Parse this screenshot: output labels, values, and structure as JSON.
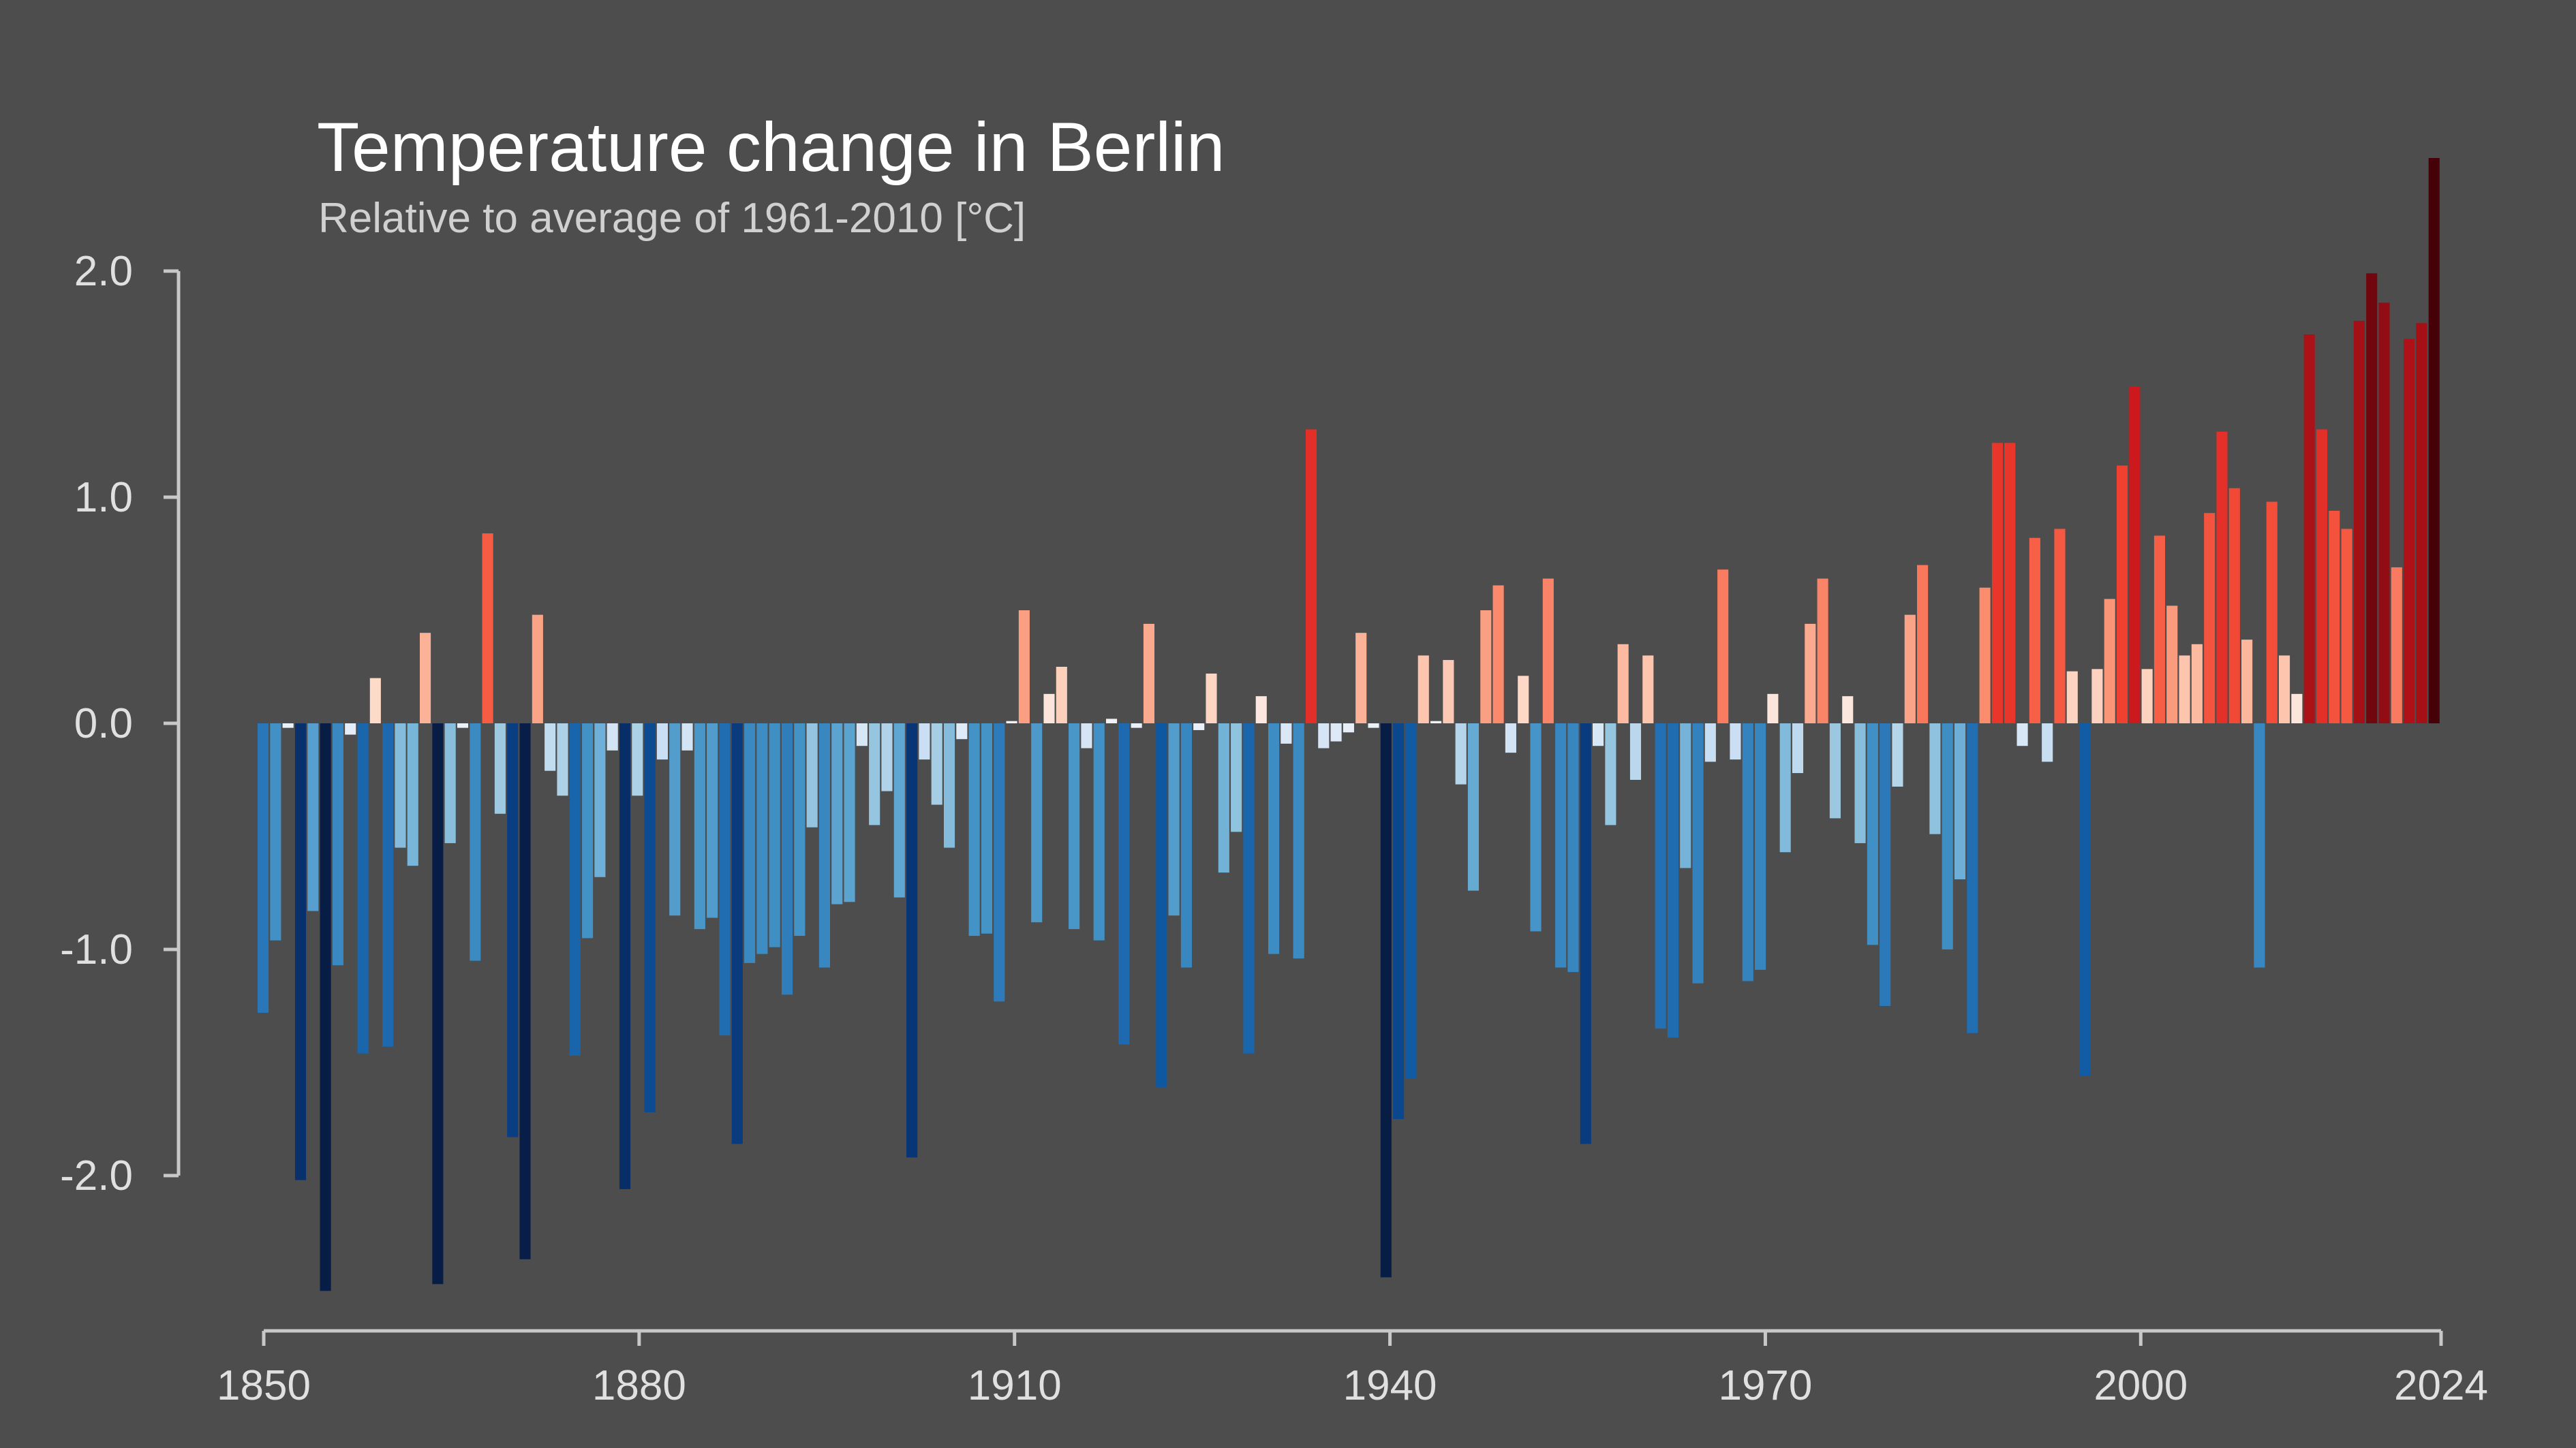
{
  "chart_data": {
    "type": "bar",
    "title": "Temperature change in Berlin",
    "subtitle": "Relative to average of 1961-2010  [°C]",
    "xlabel": "",
    "ylabel": "",
    "x_start": 1850,
    "x_end": 2024,
    "ylim": [
      -2.7,
      2.5
    ],
    "xticks": [
      1850,
      1880,
      1910,
      1940,
      1970,
      2000,
      2024
    ],
    "yticks": [
      {
        "value": 2.0,
        "label": "2.0"
      },
      {
        "value": 1.0,
        "label": "1.0"
      },
      {
        "value": 0.0,
        "label": "0.0"
      },
      {
        "value": -1.0,
        "label": "-1.0"
      },
      {
        "value": -2.0,
        "label": "-2.0"
      }
    ],
    "grid": false,
    "legend": "none",
    "color_scale": "blue-to-red diverging (colder = darker blue, warmer = darker red)",
    "values": [
      -1.28,
      -0.96,
      -0.02,
      -2.02,
      -0.83,
      -2.51,
      -1.07,
      -0.05,
      -1.46,
      0.2,
      -1.43,
      -0.55,
      -0.63,
      0.4,
      -2.48,
      -0.53,
      -0.02,
      -1.05,
      0.84,
      -0.4,
      -1.83,
      -2.37,
      0.48,
      -0.21,
      -0.32,
      -1.47,
      -0.95,
      -0.68,
      -0.12,
      -2.06,
      -0.32,
      -1.72,
      -0.16,
      -0.85,
      -0.12,
      -0.91,
      -0.86,
      -1.38,
      -1.86,
      -1.06,
      -1.02,
      -0.99,
      -1.2,
      -0.94,
      -0.46,
      -1.08,
      -0.8,
      -0.79,
      -0.1,
      -0.45,
      -0.3,
      -0.77,
      -1.92,
      -0.16,
      -0.36,
      -0.55,
      -0.07,
      -0.94,
      -0.93,
      -1.23,
      0.01,
      0.5,
      -0.88,
      0.13,
      0.25,
      -0.91,
      -0.11,
      -0.96,
      0.02,
      -1.42,
      -0.02,
      0.44,
      -1.61,
      -0.85,
      -1.08,
      -0.03,
      0.22,
      -0.66,
      -0.48,
      -1.46,
      0.12,
      -1.02,
      -0.09,
      -1.04,
      1.3,
      -0.11,
      -0.08,
      -0.04,
      0.4,
      -0.02,
      -2.45,
      -1.75,
      -1.57,
      0.3,
      0.01,
      0.28,
      -0.27,
      -0.74,
      0.5,
      0.61,
      -0.13,
      0.21,
      -0.92,
      0.64,
      -1.08,
      -1.1,
      -1.86,
      -0.1,
      -0.45,
      0.35,
      -0.25,
      0.3,
      -1.35,
      -1.39,
      -0.64,
      -1.15,
      -0.17,
      0.68,
      -0.16,
      -1.14,
      -1.09,
      0.13,
      -0.57,
      -0.22,
      0.44,
      0.64,
      -0.42,
      0.12,
      -0.53,
      -0.98,
      -1.25,
      -0.28,
      0.48,
      0.7,
      -0.49,
      -1.0,
      -0.69,
      -1.37,
      0.6,
      1.24,
      1.24,
      -0.1,
      0.82,
      -0.17,
      0.86,
      0.23,
      -1.56,
      0.24,
      0.55,
      1.14,
      1.49,
      0.24,
      0.83,
      0.52,
      0.3,
      0.35,
      0.93,
      1.29,
      1.04,
      0.37,
      -1.08,
      0.98,
      0.3,
      0.13,
      1.72,
      1.3,
      0.94,
      0.86,
      1.78,
      1.99,
      1.86,
      0.69,
      1.7,
      1.77,
      2.5
    ]
  }
}
